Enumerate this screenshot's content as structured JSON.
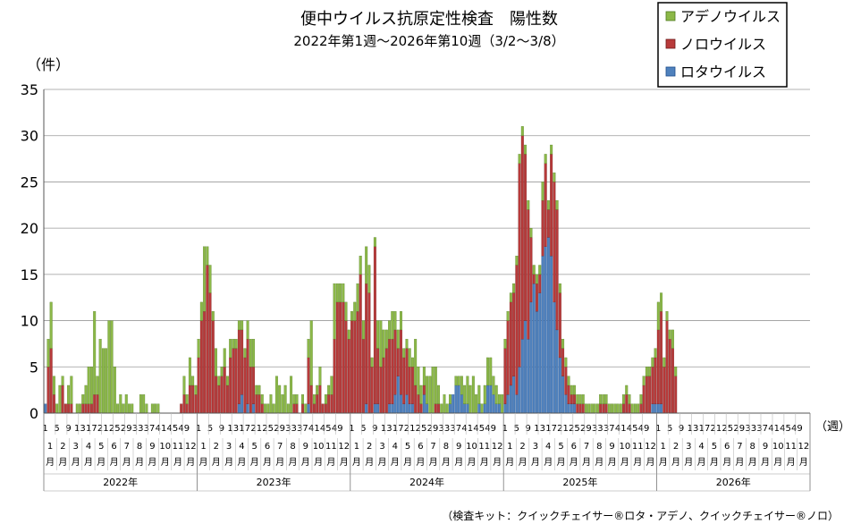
{
  "chart_data": {
    "type": "bar",
    "stacked": true,
    "title": "便中ウイルス抗原定性検査　陽性数",
    "subtitle": "2022年第1週～2026年第10週（3/2～3/8）",
    "ylabel": "（件）",
    "xlabel": "（週）",
    "ylim": [
      0,
      35
    ],
    "yticks": [
      0,
      5,
      10,
      15,
      20,
      25,
      30,
      35
    ],
    "grid": true,
    "legend_position": "top-right",
    "footnote": "（検査キット：クイックチェイサー®ロタ・アデノ、クイックチェイサー®ノロ）",
    "years": [
      "2022年",
      "2023年",
      "2024年",
      "2025年",
      "2026年"
    ],
    "months": [
      "1",
      "2",
      "3",
      "4",
      "5",
      "6",
      "7",
      "8",
      "9",
      "10",
      "11",
      "12"
    ],
    "month_suffix": "月",
    "week_ticks": [
      "1",
      "5",
      "9",
      "13",
      "17",
      "21",
      "25",
      "29",
      "33",
      "37",
      "41",
      "45",
      "49"
    ],
    "weeks_per_year": 53,
    "series": [
      {
        "name": "アデノウイルス",
        "color": "#8CB848",
        "edge": "#4E7A1E"
      },
      {
        "name": "ノロウイルス",
        "color": "#B83A3A",
        "edge": "#6E1A1A"
      },
      {
        "name": "ロタウイルス",
        "color": "#4F81BD",
        "edge": "#1F4E8C"
      }
    ],
    "years_data": [
      {
        "rota": [
          1,
          0,
          0,
          0,
          0,
          0,
          0,
          0,
          0,
          0,
          0,
          0,
          0,
          0,
          0,
          0,
          0,
          0,
          0,
          0,
          0,
          0,
          0,
          0,
          0,
          0,
          0,
          0,
          0,
          0,
          0,
          0,
          0,
          0,
          0,
          0,
          0,
          0,
          0,
          0,
          0,
          0,
          0,
          0,
          0,
          0,
          0,
          0,
          0,
          0,
          0,
          0,
          0
        ],
        "noro": [
          0,
          5,
          7,
          2,
          0,
          0,
          3,
          1,
          1,
          1,
          0,
          0,
          0,
          1,
          1,
          1,
          1,
          2,
          2,
          0,
          0,
          0,
          0,
          0,
          0,
          0,
          0,
          0,
          0,
          0,
          0,
          0,
          0,
          0,
          0,
          0,
          0,
          0,
          0,
          0,
          0,
          0,
          0,
          0,
          0,
          0,
          0,
          1,
          2,
          1,
          3,
          3,
          2
        ],
        "adeno": [
          0,
          3,
          5,
          2,
          1,
          3,
          1,
          0,
          2,
          3,
          0,
          1,
          1,
          1,
          2,
          4,
          4,
          9,
          2,
          8,
          7,
          7,
          10,
          10,
          5,
          1,
          2,
          1,
          2,
          1,
          1,
          0,
          0,
          2,
          2,
          1,
          0,
          1,
          1,
          1,
          0,
          0,
          0,
          0,
          0,
          0,
          0,
          0,
          2,
          1,
          3,
          1,
          1
        ]
      },
      {
        "rota": [
          0,
          0,
          0,
          0,
          0,
          0,
          0,
          0,
          0,
          0,
          0,
          0,
          0,
          0,
          1,
          2,
          0,
          1,
          0,
          1,
          0,
          0,
          0,
          0,
          0,
          0,
          0,
          0,
          0,
          0,
          0,
          0,
          0,
          0,
          0,
          0,
          0,
          0,
          1,
          0,
          0,
          0,
          0,
          0,
          0,
          0,
          0,
          0,
          0,
          0,
          0,
          0,
          0
        ],
        "noro": [
          6,
          10,
          11,
          16,
          13,
          10,
          4,
          3,
          4,
          5,
          3,
          6,
          7,
          7,
          8,
          7,
          6,
          7,
          5,
          4,
          2,
          2,
          1,
          0,
          0,
          0,
          0,
          0,
          0,
          0,
          0,
          0,
          0,
          1,
          1,
          0,
          1,
          0,
          5,
          3,
          1,
          2,
          3,
          1,
          1,
          2,
          2,
          8,
          12,
          12,
          12,
          10,
          8
        ],
        "adeno": [
          2,
          2,
          7,
          2,
          3,
          1,
          3,
          1,
          1,
          2,
          1,
          2,
          1,
          1,
          1,
          1,
          1,
          2,
          3,
          3,
          1,
          1,
          1,
          1,
          1,
          2,
          1,
          4,
          3,
          2,
          3,
          1,
          4,
          1,
          1,
          0,
          1,
          1,
          2,
          7,
          1,
          1,
          2,
          0,
          1,
          1,
          2,
          6,
          2,
          2,
          2,
          2,
          1
        ]
      },
      {
        "rota": [
          0,
          0,
          0,
          0,
          0,
          1,
          0,
          0,
          1,
          1,
          0,
          0,
          0,
          1,
          1,
          2,
          4,
          2,
          1,
          2,
          1,
          1,
          0,
          0,
          0,
          2,
          1,
          0,
          0,
          0,
          0,
          0,
          0,
          0,
          1,
          2,
          3,
          3,
          2,
          1,
          1,
          0,
          0,
          0,
          1,
          0,
          1,
          3,
          3,
          2,
          1,
          1,
          0
        ],
        "noro": [
          10,
          10,
          11,
          15,
          8,
          13,
          13,
          5,
          17,
          6,
          5,
          6,
          7,
          7,
          7,
          7,
          3,
          7,
          5,
          5,
          4,
          4,
          3,
          2,
          1,
          1,
          0,
          0,
          0,
          1,
          1,
          0,
          0,
          0,
          0,
          0,
          0,
          0,
          0,
          0,
          0,
          0,
          0,
          0,
          0,
          0,
          0,
          0,
          0,
          0,
          0,
          0,
          0
        ],
        "adeno": [
          1,
          2,
          3,
          2,
          2,
          4,
          3,
          1,
          1,
          3,
          5,
          3,
          2,
          2,
          3,
          2,
          2,
          2,
          1,
          1,
          2,
          1,
          5,
          3,
          2,
          2,
          3,
          4,
          5,
          4,
          2,
          1,
          2,
          1,
          1,
          0,
          1,
          1,
          2,
          2,
          3,
          3,
          4,
          2,
          2,
          1,
          2,
          3,
          3,
          2,
          2,
          1,
          2
        ]
      },
      {
        "rota": [
          1,
          2,
          3,
          4,
          2,
          5,
          8,
          10,
          8,
          12,
          14,
          11,
          13,
          17,
          18,
          19,
          17,
          12,
          9,
          6,
          4,
          2,
          1,
          1,
          1,
          0,
          0,
          0,
          0,
          0,
          0,
          0,
          0,
          0,
          0,
          0,
          0,
          0,
          0,
          0,
          0,
          0,
          0,
          0,
          0,
          0,
          0,
          0,
          0,
          0,
          0,
          1,
          1
        ],
        "noro": [
          6,
          8,
          9,
          9,
          14,
          22,
          22,
          18,
          14,
          7,
          1,
          3,
          2,
          6,
          9,
          3,
          11,
          13,
          13,
          7,
          3,
          3,
          2,
          1,
          1,
          1,
          1,
          1,
          0,
          0,
          0,
          0,
          0,
          1,
          1,
          1,
          0,
          0,
          0,
          0,
          0,
          1,
          2,
          1,
          0,
          0,
          0,
          1,
          3,
          4,
          4,
          4,
          5
        ],
        "adeno": [
          1,
          1,
          1,
          1,
          1,
          1,
          1,
          1,
          1,
          1,
          1,
          1,
          1,
          2,
          1,
          1,
          1,
          1,
          1,
          1,
          1,
          1,
          1,
          1,
          1,
          1,
          1,
          1,
          1,
          1,
          1,
          1,
          1,
          1,
          1,
          1,
          1,
          1,
          1,
          1,
          1,
          1,
          1,
          1,
          1,
          1,
          1,
          1,
          1,
          1,
          1,
          1,
          1
        ]
      },
      {
        "rota": [
          1,
          1,
          0,
          0,
          0,
          0,
          0,
          0,
          0,
          0
        ],
        "noro": [
          8,
          10,
          5,
          10,
          8,
          7,
          4,
          0,
          0,
          0
        ],
        "adeno": [
          3,
          2,
          1,
          1,
          1,
          2,
          1,
          0,
          0,
          0
        ]
      }
    ]
  }
}
